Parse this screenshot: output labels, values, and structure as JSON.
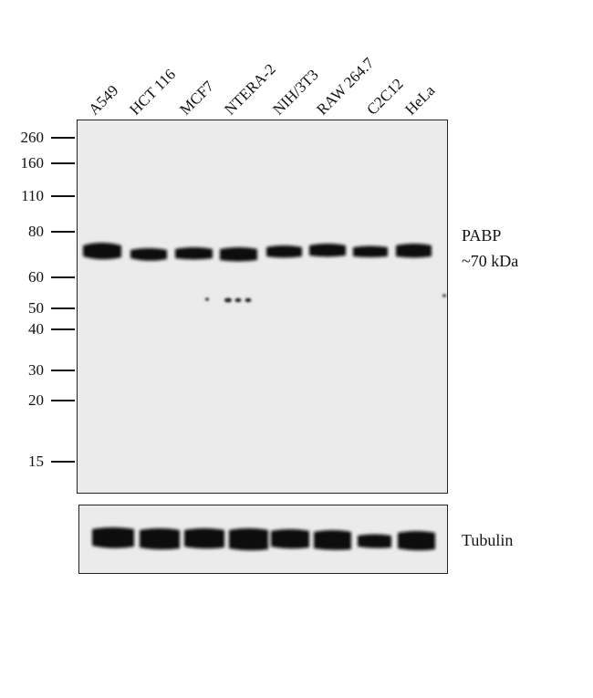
{
  "lanes": [
    "A549",
    "HCT 116",
    "MCF7",
    "NTERA-2",
    "NIH/3T3",
    "RAW 264.7",
    "C2C12",
    "HeLa"
  ],
  "mw_markers": [
    "260",
    "160",
    "110",
    "80",
    "60",
    "50",
    "40",
    "30",
    "20",
    "15"
  ],
  "target": {
    "name": "PABP",
    "size": "~70 kDa"
  },
  "loading_control": {
    "name": "Tubulin"
  },
  "colors": {
    "membrane": "#ebebeb",
    "band": "#111111"
  }
}
